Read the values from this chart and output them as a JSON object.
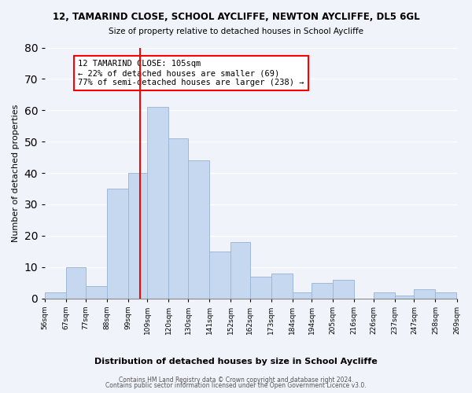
{
  "title1": "12, TAMARIND CLOSE, SCHOOL AYCLIFFE, NEWTON AYCLIFFE, DL5 6GL",
  "title2": "Size of property relative to detached houses in School Aycliffe",
  "xlabel": "Distribution of detached houses by size in School Aycliffe",
  "ylabel": "Number of detached properties",
  "bin_labels": [
    "56sqm",
    "67sqm",
    "77sqm",
    "88sqm",
    "99sqm",
    "109sqm",
    "120sqm",
    "130sqm",
    "141sqm",
    "152sqm",
    "162sqm",
    "173sqm",
    "184sqm",
    "194sqm",
    "205sqm",
    "216sqm",
    "226sqm",
    "237sqm",
    "247sqm",
    "258sqm",
    "269sqm"
  ],
  "bin_edges": [
    56,
    67,
    77,
    88,
    99,
    109,
    120,
    130,
    141,
    152,
    162,
    173,
    184,
    194,
    205,
    216,
    226,
    237,
    247,
    258,
    269
  ],
  "bar_heights": [
    2,
    10,
    4,
    35,
    40,
    61,
    51,
    44,
    15,
    18,
    7,
    8,
    2,
    5,
    6,
    0,
    2,
    1,
    3,
    2
  ],
  "bar_color": "#c5d8f0",
  "bar_edge_color": "#a0b8d8",
  "vline_x": 105,
  "vline_color": "red",
  "annotation_title": "12 TAMARIND CLOSE: 105sqm",
  "annotation_line1": "← 22% of detached houses are smaller (69)",
  "annotation_line2": "77% of semi-detached houses are larger (238) →",
  "annotation_box_color": "white",
  "annotation_box_edge": "red",
  "ylim": [
    0,
    80
  ],
  "yticks": [
    0,
    10,
    20,
    30,
    40,
    50,
    60,
    70,
    80
  ],
  "footer1": "Contains HM Land Registry data © Crown copyright and database right 2024.",
  "footer2": "Contains public sector information licensed under the Open Government Licence v3.0.",
  "bg_color": "#f0f4fa"
}
